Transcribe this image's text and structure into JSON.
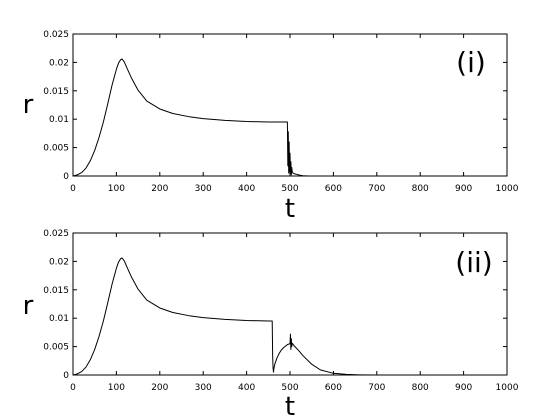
{
  "chart_data": [
    {
      "type": "line",
      "panel_label": "(i)",
      "xlabel": "t",
      "ylabel": "r",
      "xlim": [
        0,
        1000
      ],
      "ylim": [
        0,
        0.025
      ],
      "xticks": [
        "0",
        "100",
        "200",
        "300",
        "400",
        "500",
        "600",
        "700",
        "800",
        "900",
        "1000"
      ],
      "yticks": [
        "0",
        "0.005",
        "0.01",
        "0.015",
        "0.02",
        "0.025"
      ],
      "grid": false,
      "series": [
        {
          "x": [
            0,
            10,
            20,
            30,
            40,
            50,
            60,
            70,
            80,
            90,
            100,
            105,
            110,
            113,
            118,
            125,
            135,
            150,
            170,
            200,
            230,
            270,
            300,
            350,
            400,
            450,
            490,
            492,
            494,
            495,
            496,
            497,
            498,
            499,
            500,
            501,
            502,
            503,
            504,
            505,
            507,
            510,
            515,
            520,
            525,
            530,
            540,
            560,
            600,
            700,
            800,
            900,
            1000
          ],
          "y": [
            0,
            0.0002,
            0.0006,
            0.0014,
            0.0027,
            0.0045,
            0.0068,
            0.0095,
            0.0127,
            0.016,
            0.0188,
            0.0199,
            0.0205,
            0.0206,
            0.0201,
            0.0189,
            0.0172,
            0.0151,
            0.0132,
            0.0118,
            0.011,
            0.0104,
            0.0101,
            0.0098,
            0.0096,
            0.0095,
            0.0095,
            0.0095,
            0.0095,
            0.0018,
            0.0078,
            0.0005,
            0.006,
            0.0008,
            0.004,
            0.0004,
            0.0025,
            0.0002,
            0.0015,
            0.0008,
            0.0005,
            0.0004,
            0.0003,
            0.0002,
            0.0001,
            5e-05,
            2e-05,
            0,
            0,
            0,
            0,
            0,
            0
          ]
        }
      ]
    },
    {
      "type": "line",
      "panel_label": "(ii)",
      "xlabel": "t",
      "ylabel": "r",
      "xlim": [
        0,
        1000
      ],
      "ylim": [
        0,
        0.025
      ],
      "xticks": [
        "0",
        "100",
        "200",
        "300",
        "400",
        "500",
        "600",
        "700",
        "800",
        "900",
        "1000"
      ],
      "yticks": [
        "0",
        "0.005",
        "0.01",
        "0.015",
        "0.02",
        "0.025"
      ],
      "grid": false,
      "series": [
        {
          "x": [
            0,
            10,
            20,
            30,
            40,
            50,
            60,
            70,
            80,
            90,
            100,
            105,
            110,
            113,
            118,
            125,
            135,
            150,
            170,
            200,
            230,
            270,
            300,
            350,
            400,
            450,
            458,
            459,
            460,
            461,
            462,
            463,
            465,
            470,
            475,
            480,
            485,
            490,
            495,
            500,
            501,
            502,
            503,
            504,
            505,
            507,
            510,
            520,
            530,
            550,
            570,
            600,
            630,
            660,
            700,
            800,
            900,
            1000
          ],
          "y": [
            0,
            0.0002,
            0.0006,
            0.0014,
            0.0027,
            0.0045,
            0.0068,
            0.0095,
            0.0127,
            0.016,
            0.0188,
            0.0199,
            0.0205,
            0.0206,
            0.0201,
            0.0189,
            0.0172,
            0.0151,
            0.0132,
            0.0118,
            0.011,
            0.0104,
            0.0101,
            0.0098,
            0.0096,
            0.0095,
            0.0095,
            0.0095,
            0.0035,
            0.0012,
            0.0005,
            0.0012,
            0.0019,
            0.003,
            0.0038,
            0.0044,
            0.0048,
            0.0051,
            0.0054,
            0.0055,
            0.0072,
            0.0045,
            0.0064,
            0.005,
            0.0056,
            0.0054,
            0.0051,
            0.0043,
            0.0034,
            0.0019,
            0.0009,
            0.0003,
            0.0001,
            3e-05,
            0,
            0,
            0,
            0
          ]
        }
      ]
    }
  ]
}
